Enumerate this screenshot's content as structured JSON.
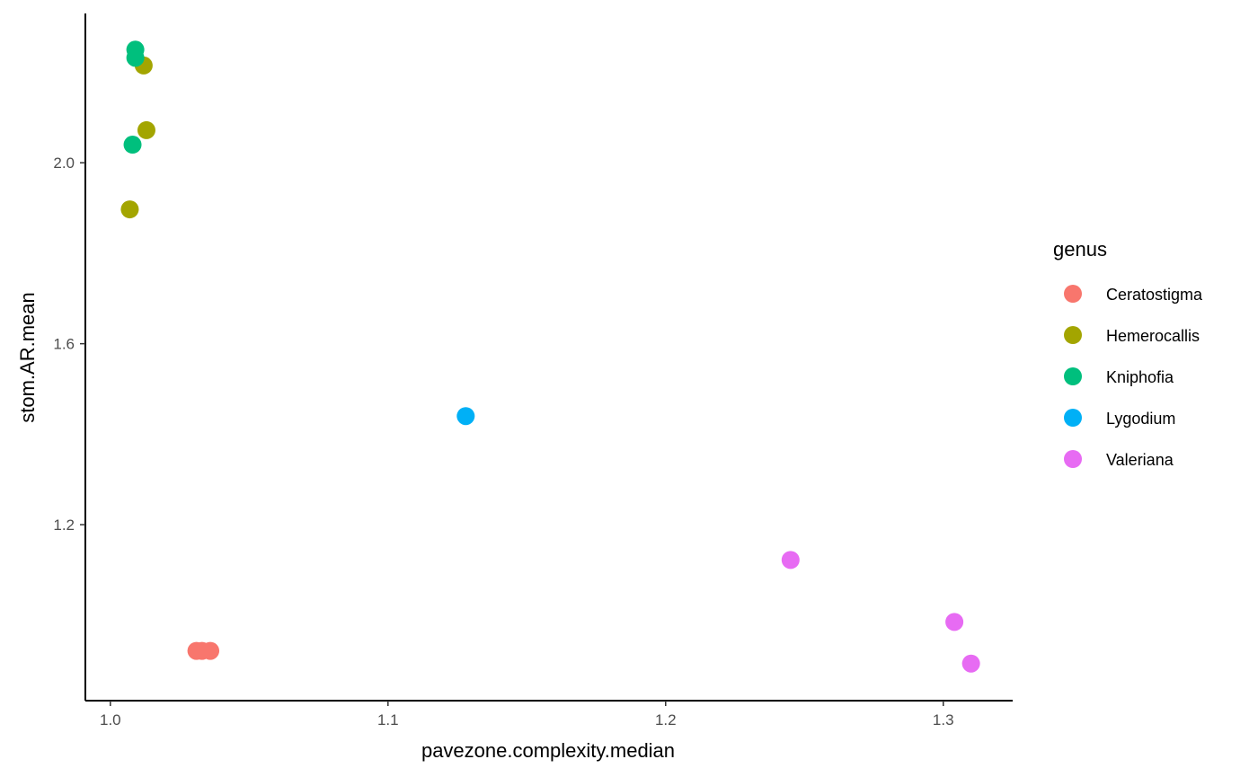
{
  "chart_data": {
    "type": "scatter",
    "xlabel": "pavezone.complexity.median",
    "ylabel": "stom.AR.mean",
    "xlim": [
      0.991,
      1.325
    ],
    "ylim": [
      0.811,
      2.33
    ],
    "xticks": [
      1.0,
      1.1,
      1.2,
      1.3
    ],
    "xtick_labels": [
      "1.0",
      "1.1",
      "1.2",
      "1.3"
    ],
    "yticks": [
      1.2,
      1.6,
      2.0
    ],
    "ytick_labels": [
      "1.2",
      "1.6",
      "2.0"
    ],
    "grid": false,
    "legend": {
      "title": "genus",
      "placement": "right"
    },
    "series": [
      {
        "name": "Ceratostigma",
        "color": "#F8766D",
        "points": [
          [
            1.031,
            0.921
          ],
          [
            1.033,
            0.921
          ],
          [
            1.036,
            0.921
          ]
        ]
      },
      {
        "name": "Hemerocallis",
        "color": "#A3A500",
        "points": [
          [
            1.012,
            2.215
          ],
          [
            1.013,
            2.072
          ],
          [
            1.007,
            1.897
          ]
        ]
      },
      {
        "name": "Kniphofia",
        "color": "#00BF7D",
        "points": [
          [
            1.009,
            2.25
          ],
          [
            1.009,
            2.232
          ],
          [
            1.008,
            2.04
          ]
        ]
      },
      {
        "name": "Lygodium",
        "color": "#00B0F6",
        "points": [
          [
            1.128,
            1.44
          ]
        ]
      },
      {
        "name": "Valeriana",
        "color": "#E76BF3",
        "points": [
          [
            1.245,
            1.122
          ],
          [
            1.304,
            0.985
          ],
          [
            1.31,
            0.893
          ]
        ]
      }
    ]
  }
}
